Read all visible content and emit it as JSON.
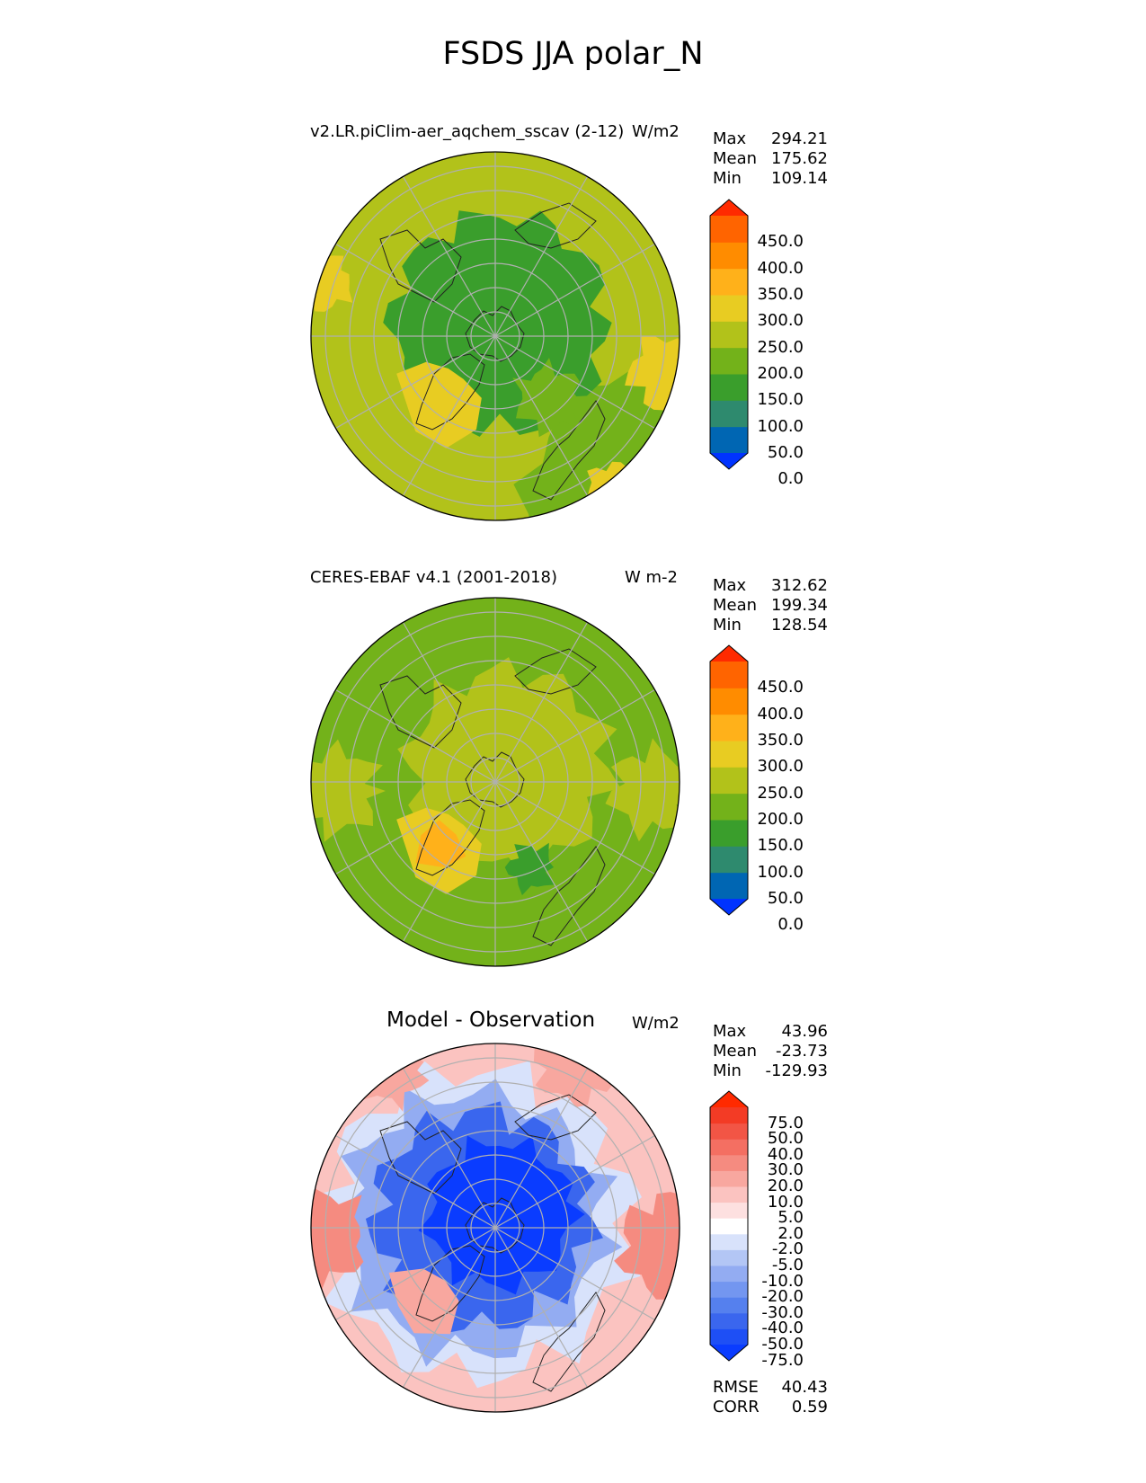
{
  "suptitle": "FSDS JJA polar_N",
  "colors": {
    "abs_levels": [
      "#0033ff",
      "#0066b3",
      "#2e8a6e",
      "#3a9e2c",
      "#73b21a",
      "#b2c21a",
      "#e8cc22",
      "#ffb11a",
      "#ff8c00",
      "#ff6400",
      "#ff2a00"
    ],
    "diff_levels": [
      "#0a3cff",
      "#1e4ff5",
      "#3a66ee",
      "#5580ee",
      "#7396f0",
      "#93acf2",
      "#b3c6f5",
      "#d8e2fb",
      "#ffffff",
      "#fde0e0",
      "#fbc3c0",
      "#f8a79f",
      "#f58b80",
      "#f46f62",
      "#f25545",
      "#f33b25",
      "#ff2a00"
    ],
    "grid": "#b0b0b0",
    "coast": "#222222"
  },
  "panels": [
    {
      "id": "test",
      "title_left": "v2.LR.piClim-aer_aqchem_sscav (2-12)",
      "title_right": "W/m2",
      "stats": [
        {
          "label": "Max",
          "value": "294.21"
        },
        {
          "label": "Mean",
          "value": "175.62"
        },
        {
          "label": "Min",
          "value": "109.14"
        }
      ],
      "colorbar_labels": [
        "450.0",
        "400.0",
        "350.0",
        "300.0",
        "250.0",
        "200.0",
        "150.0",
        "100.0",
        "50.0",
        "0.0"
      ]
    },
    {
      "id": "ref",
      "title_left": "CERES-EBAF v4.1 (2001-2018)",
      "title_right": "W m-2",
      "stats": [
        {
          "label": "Max",
          "value": "312.62"
        },
        {
          "label": "Mean",
          "value": "199.34"
        },
        {
          "label": "Min",
          "value": "128.54"
        }
      ],
      "colorbar_labels": [
        "450.0",
        "400.0",
        "350.0",
        "300.0",
        "250.0",
        "200.0",
        "150.0",
        "100.0",
        "50.0",
        "0.0"
      ]
    },
    {
      "id": "diff",
      "title_center": "Model - Observation",
      "title_right": "W/m2",
      "stats": [
        {
          "label": "Max",
          "value": "43.96"
        },
        {
          "label": "Mean",
          "value": "-23.73"
        },
        {
          "label": "Min",
          "value": "-129.93"
        }
      ],
      "colorbar_labels": [
        "75.0",
        "50.0",
        "40.0",
        "30.0",
        "20.0",
        "10.0",
        "5.0",
        "2.0",
        "-2.0",
        "-5.0",
        "-10.0",
        "-20.0",
        "-30.0",
        "-40.0",
        "-50.0",
        "-75.0"
      ],
      "metrics": [
        {
          "label": "RMSE",
          "value": "40.43"
        },
        {
          "label": "CORR",
          "value": "0.59"
        }
      ]
    }
  ]
}
